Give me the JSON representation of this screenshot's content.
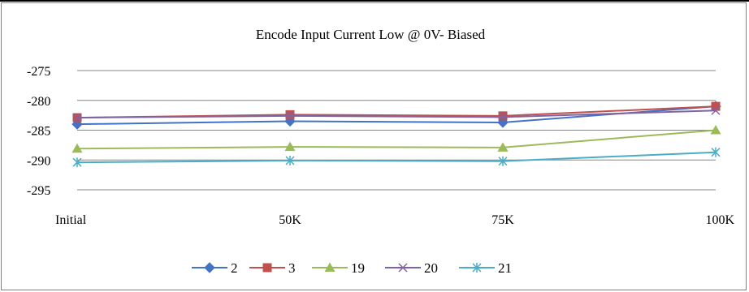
{
  "chart_data": {
    "type": "line",
    "title": "Encode Input Current Low @ 0V- Biased",
    "xlabel": "",
    "ylabel": "",
    "categories": [
      "Initial",
      "50K",
      "75K",
      "100K"
    ],
    "ylim": [
      -295,
      -275
    ],
    "yticks": [
      "-275",
      "-280",
      "-285",
      "-290",
      "-295"
    ],
    "ytick_values": [
      -275,
      -280,
      -285,
      -290,
      -295
    ],
    "grid": true,
    "legend_position": "bottom",
    "series": [
      {
        "name": "2",
        "values": [
          -284.0,
          -283.5,
          -283.7,
          -281.0
        ],
        "color": "#4472c4",
        "marker": "diamond"
      },
      {
        "name": "3",
        "values": [
          -282.9,
          -282.4,
          -282.6,
          -281.0
        ],
        "color": "#c0504d",
        "marker": "square"
      },
      {
        "name": "19",
        "values": [
          -288.1,
          -287.8,
          -287.9,
          -285.0
        ],
        "color": "#9bbb59",
        "marker": "triangle"
      },
      {
        "name": "20",
        "values": [
          -282.9,
          -282.6,
          -282.8,
          -281.7
        ],
        "color": "#8064a2",
        "marker": "x"
      },
      {
        "name": "21",
        "values": [
          -290.4,
          -290.1,
          -290.2,
          -288.7
        ],
        "color": "#4bacc6",
        "marker": "star"
      }
    ]
  }
}
